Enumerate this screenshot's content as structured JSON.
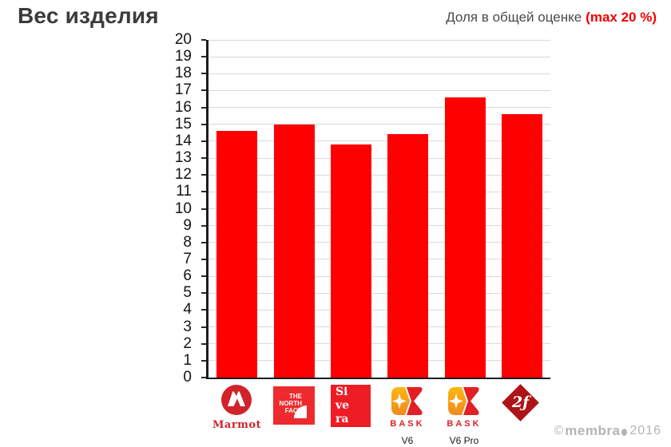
{
  "header": {
    "title": "Вес изделия",
    "subtitle": "Доля в общей оценке",
    "subtitle_accent": "(max 20 %)"
  },
  "chart_data": {
    "type": "bar",
    "title": "Вес изделия",
    "subtitle": "Доля в общей оценке (max 20 %)",
    "categories": [
      "Marmot",
      "The North Face",
      "Sivera",
      "BASK V6",
      "BASK V6 Pro",
      "Red Fox"
    ],
    "values": [
      14.6,
      15.0,
      13.8,
      14.4,
      16.6,
      15.6
    ],
    "xlabel": "",
    "ylabel": "",
    "ylim": [
      0,
      20
    ],
    "ytick_step": 1,
    "grid": true,
    "legend": false,
    "bar_color": "#ff0000"
  },
  "colors": {
    "accent_red": "#f30000",
    "bar_color": "#ff0000",
    "grid_color": "#d9d9d9",
    "marmot_red": "#d2232a",
    "tnf_red": "#ee2a2e",
    "sivera_red": "#ee1c25",
    "bask_red": "#e31e24",
    "bask_yellow_1": "#fcb813",
    "bask_yellow_2": "#f18a1d",
    "redfox_red": "#ae1317",
    "watermark_gray": "#b4b4b4"
  },
  "logos": {
    "marmot": {
      "wordmark": "Marmot"
    },
    "north_face": {
      "lines": [
        "THE",
        "NORTH",
        "FACE"
      ]
    },
    "sivera": {
      "lines": [
        "Si",
        "ve",
        "ra"
      ]
    },
    "bask_v6": {
      "wordmark": "BASK",
      "sublabel": "V6"
    },
    "bask_v6_pro": {
      "wordmark": "BASK",
      "sublabel": "V6 Pro"
    },
    "redfox": {
      "glyph": "2ƒ"
    }
  },
  "footer": {
    "copyright": "©",
    "brand": "membra",
    "year": "2016"
  }
}
